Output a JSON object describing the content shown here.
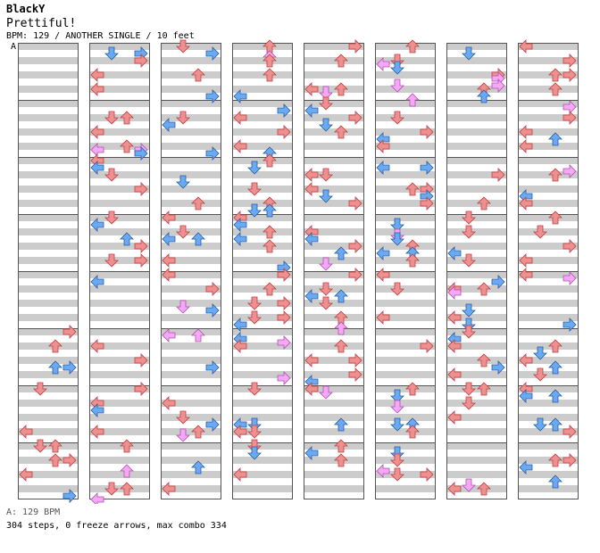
{
  "header": {
    "artist": "BlackY",
    "title": "Prettiful!",
    "info": "BPM: 129 / ANOTHER SINGLE / 10 feet",
    "bpm_marker": "A"
  },
  "footer": {
    "bpm_legend": "A: 129 BPM",
    "stats": "304 steps, 0 freeze arrows, max combo 334"
  },
  "colors": {
    "stripe": "#cccccc",
    "border": "#555555",
    "note_4th": "#f08f8f",
    "note_8th": "#6aaaf2",
    "note_16th": "#f5a8f5"
  },
  "chart": {
    "columns": 8,
    "measures_per_column": 8,
    "seed": 20240129
  }
}
